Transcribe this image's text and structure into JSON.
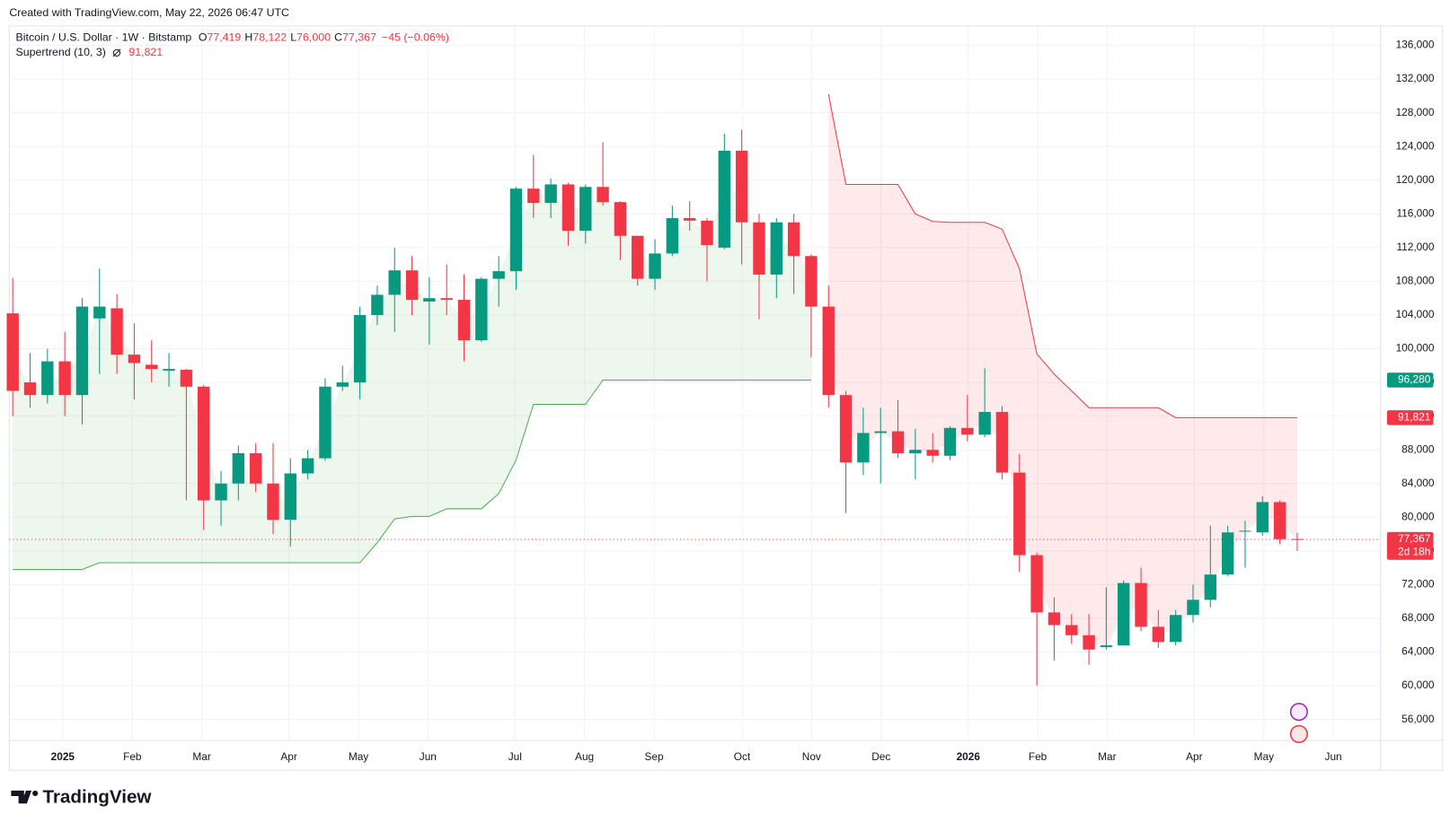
{
  "caption": "Created with TradingView.com, May 22, 2026 06:47 UTC",
  "logo": "TradingView",
  "chart_data": {
    "type": "candlestick",
    "title": "Bitcoin / U.S. Dollar · 1W · Bitstamp",
    "header": {
      "ohlc": [
        {
          "label": "O",
          "value": "77,419"
        },
        {
          "label": "H",
          "value": "78,122"
        },
        {
          "label": "L",
          "value": "76,000"
        },
        {
          "label": "C",
          "value": "77,367"
        }
      ],
      "change": "−45 (−0.06%)"
    },
    "categories": [
      null,
      null,
      null,
      null,
      null,
      null,
      null,
      null,
      null,
      null,
      null,
      null,
      null,
      null,
      null,
      null,
      null,
      null,
      null,
      null,
      null,
      null,
      null,
      null,
      null,
      null,
      null,
      null,
      null,
      null,
      null,
      null,
      null,
      null,
      null,
      null,
      null,
      null,
      null,
      null,
      null,
      null,
      null,
      null,
      null,
      null,
      null,
      null,
      null,
      null,
      null,
      null,
      null,
      null,
      null,
      null,
      null,
      null,
      null,
      null,
      null,
      null,
      null,
      null,
      null,
      null,
      null,
      null,
      null,
      null,
      null,
      null,
      null,
      null,
      null
    ],
    "open": [
      104200,
      96000,
      94500,
      98500,
      94500,
      103600,
      104800,
      99300,
      98100,
      97400,
      97500,
      95500,
      82000,
      84000,
      87600,
      84000,
      79700,
      85200,
      87000,
      95500,
      96000,
      104000,
      106400,
      109300,
      105600,
      106000,
      105800,
      101000,
      108300,
      109200,
      119000,
      117300,
      119500,
      114000,
      119200,
      117400,
      113400,
      108300,
      111300,
      115500,
      115200,
      112000,
      123500,
      115000,
      108800,
      115000,
      111000,
      105000,
      94500,
      86500,
      90000,
      90200,
      87600,
      88000,
      87300,
      90600,
      89800,
      92500,
      85300,
      75500,
      68700,
      67200,
      66000,
      64600,
      64800,
      72200,
      67000,
      65200,
      68400,
      70200,
      73200,
      78300,
      78200,
      81800,
      77419
    ],
    "high": [
      108400,
      99500,
      100000,
      102000,
      106000,
      109500,
      106500,
      103000,
      101000,
      99500,
      97600,
      95700,
      85500,
      88500,
      88800,
      88800,
      87000,
      88000,
      96500,
      98000,
      105000,
      107500,
      112000,
      111000,
      108500,
      110000,
      108800,
      108500,
      111000,
      119200,
      123000,
      120200,
      119700,
      119500,
      124500,
      117500,
      113400,
      113000,
      117000,
      117500,
      115500,
      125500,
      126000,
      116000,
      115500,
      116000,
      111200,
      107500,
      95000,
      93000,
      93000,
      93900,
      90500,
      90000,
      90800,
      94500,
      97700,
      93200,
      87500,
      75800,
      70500,
      68500,
      68500,
      71700,
      72500,
      74000,
      69000,
      69000,
      72000,
      79000,
      79000,
      79600,
      82500,
      82000,
      78122
    ],
    "low": [
      92000,
      93000,
      93500,
      92000,
      91000,
      97000,
      97000,
      94000,
      96000,
      95500,
      82000,
      78500,
      79000,
      82000,
      83000,
      78000,
      76500,
      84500,
      86700,
      95000,
      94000,
      102800,
      102000,
      104000,
      100500,
      104000,
      98500,
      100800,
      105000,
      107000,
      115500,
      115500,
      112200,
      112500,
      117000,
      110500,
      107500,
      107000,
      111000,
      114000,
      108000,
      111800,
      110000,
      103500,
      106000,
      106500,
      99000,
      93000,
      80500,
      85000,
      84000,
      87000,
      84500,
      86500,
      86800,
      89000,
      89500,
      84500,
      73500,
      60000,
      63000,
      65000,
      62500,
      64300,
      64800,
      66500,
      64500,
      64800,
      67500,
      69300,
      73000,
      74000,
      77800,
      76800,
      76000
    ],
    "close": [
      95000,
      94500,
      98500,
      94500,
      105000,
      105000,
      99300,
      98300,
      97600,
      97600,
      95500,
      82000,
      84000,
      87600,
      84000,
      79700,
      85200,
      87000,
      95500,
      96000,
      104000,
      106400,
      109300,
      105800,
      106000,
      105800,
      101000,
      108300,
      109200,
      119000,
      117300,
      119500,
      114000,
      119200,
      117400,
      113400,
      108300,
      111300,
      115500,
      115200,
      112300,
      123500,
      115000,
      108800,
      115000,
      111000,
      105000,
      94500,
      86500,
      90000,
      90200,
      87600,
      88000,
      87300,
      90600,
      89800,
      92500,
      85300,
      75500,
      68700,
      67200,
      66000,
      64300,
      64800,
      72200,
      67000,
      65200,
      68400,
      70200,
      73200,
      78200,
      78400,
      81800,
      77400,
      77367
    ],
    "up_color": "#089981",
    "down_color": "#f23645",
    "indicator": {
      "name": "Supertrend (10, 3)",
      "value_label": "91,821",
      "up_color": "#4caf50",
      "down_color": "#f23645",
      "up": [
        73800,
        73800,
        73800,
        73800,
        73800,
        74600,
        74600,
        74600,
        74600,
        74600,
        74600,
        74600,
        74600,
        74600,
        74600,
        74600,
        74600,
        74600,
        74600,
        74600,
        74600,
        77000,
        79800,
        80100,
        80100,
        81000,
        81000,
        81000,
        82800,
        86800,
        93400,
        93400,
        93400,
        93400,
        96280,
        96280,
        96280,
        96280,
        96280,
        96280,
        96280,
        96280,
        96280,
        96280,
        96280,
        96280,
        96280,
        null,
        null,
        null,
        null,
        null,
        null,
        null,
        null,
        null,
        null,
        null,
        null,
        null,
        null,
        null,
        null,
        null,
        null,
        null,
        null,
        null,
        null,
        null,
        null,
        null,
        null,
        null,
        null
      ],
      "down": [
        null,
        null,
        null,
        null,
        null,
        null,
        null,
        null,
        null,
        null,
        null,
        null,
        null,
        null,
        null,
        null,
        null,
        null,
        null,
        null,
        null,
        null,
        null,
        null,
        null,
        null,
        null,
        null,
        null,
        null,
        null,
        null,
        null,
        null,
        null,
        null,
        null,
        null,
        null,
        null,
        null,
        null,
        null,
        null,
        null,
        null,
        null,
        130200,
        119500,
        119500,
        119500,
        119500,
        116000,
        115100,
        115000,
        115000,
        115000,
        114200,
        109500,
        99400,
        97000,
        95000,
        93000,
        93000,
        93000,
        93000,
        93000,
        91821,
        91821,
        91821,
        91821,
        91821,
        91821,
        91821,
        91821
      ]
    },
    "price_tags": [
      {
        "value": 96280,
        "label": "96,280",
        "color": "#089981"
      },
      {
        "value": 91821,
        "label": "91,821",
        "color": "#f23645"
      },
      {
        "value": 77367,
        "label": "77,367",
        "color": "#f23645",
        "countdown": "2d 18h"
      }
    ],
    "xlim": [
      -0.2,
      78.8
    ],
    "xticks": [
      {
        "value": 2.88,
        "label": "2025"
      },
      {
        "value": 6.89,
        "label": "Feb"
      },
      {
        "value": 10.89,
        "label": "Mar"
      },
      {
        "value": 15.91,
        "label": "Apr"
      },
      {
        "value": 19.92,
        "label": "May"
      },
      {
        "value": 23.92,
        "label": "Jun"
      },
      {
        "value": 28.94,
        "label": "Jul"
      },
      {
        "value": 32.94,
        "label": "Aug"
      },
      {
        "value": 36.95,
        "label": "Sep"
      },
      {
        "value": 42.02,
        "label": "Oct"
      },
      {
        "value": 46.02,
        "label": "Nov"
      },
      {
        "value": 50.03,
        "label": "Dec"
      },
      {
        "value": 55.05,
        "label": "2026"
      },
      {
        "value": 59.05,
        "label": "Feb"
      },
      {
        "value": 63.05,
        "label": "Mar"
      },
      {
        "value": 68.07,
        "label": "Apr"
      },
      {
        "value": 72.08,
        "label": "May"
      },
      {
        "value": 76.08,
        "label": "Jun"
      }
    ],
    "ylim": [
      53500,
      138300
    ],
    "yticks": [
      {
        "value": 56000,
        "label": "56,000"
      },
      {
        "value": 60000,
        "label": "60,000"
      },
      {
        "value": 64000,
        "label": "64,000"
      },
      {
        "value": 68000,
        "label": "68,000"
      },
      {
        "value": 72000,
        "label": "72,000"
      },
      {
        "value": 76000,
        "label": "76,000"
      },
      {
        "value": 80000,
        "label": "80,000"
      },
      {
        "value": 84000,
        "label": "84,000"
      },
      {
        "value": 88000,
        "label": "88,000"
      },
      {
        "value": 92000,
        "label": "92,000"
      },
      {
        "value": 96000,
        "label": "96,000"
      },
      {
        "value": 100000,
        "label": "100,000"
      },
      {
        "value": 104000,
        "label": "104,000"
      },
      {
        "value": 108000,
        "label": "108,000"
      },
      {
        "value": 112000,
        "label": "112,000"
      },
      {
        "value": 116000,
        "label": "116,000"
      },
      {
        "value": 120000,
        "label": "120,000"
      },
      {
        "value": 124000,
        "label": "124,000"
      },
      {
        "value": 128000,
        "label": "128,000"
      },
      {
        "value": 132000,
        "label": "132,000"
      },
      {
        "value": 136000,
        "label": "136,000"
      }
    ],
    "grid": true
  }
}
